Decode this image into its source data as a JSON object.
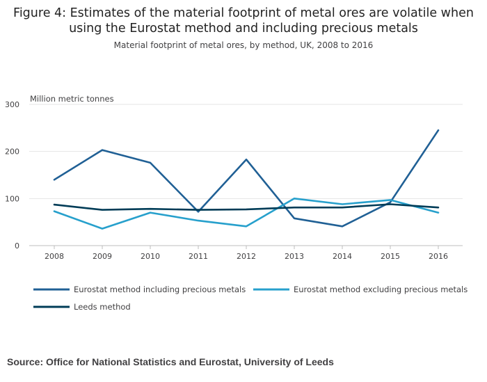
{
  "title_line1": "Figure 4: Estimates of the material footprint of metal ores are volatile when",
  "title_line2": "using the Eurostat method and including precious metals",
  "subtitle": "Material footprint of metal ores, by method, UK, 2008 to 2016",
  "source": "Source: Office for National Statistics and Eurostat, University of Leeds",
  "colors": {
    "including": "#206095",
    "excluding": "#27A0CC",
    "leeds": "#003C57",
    "grid": "#e4e4e4",
    "axis": "#bcbcbc"
  },
  "chart_data": {
    "type": "line",
    "title": "Figure 4: Estimates of the material footprint of metal ores are volatile when using the Eurostat method and including precious metals",
    "subtitle": "Material footprint of metal ores, by method, UK, 2008 to 2016",
    "ylabel": "Million metric tonnes",
    "xlabel": "",
    "categories": [
      "2008",
      "2009",
      "2010",
      "2011",
      "2012",
      "2013",
      "2014",
      "2015",
      "2016"
    ],
    "ylim": [
      0,
      300
    ],
    "yticks": [
      "0",
      "100",
      "200",
      "300"
    ],
    "grid": true,
    "legend_position": "bottom",
    "series": [
      {
        "name": "Eurostat method including precious metals",
        "color": "#206095",
        "values": [
          140,
          203,
          176,
          72,
          183,
          58,
          41,
          92,
          245
        ]
      },
      {
        "name": "Eurostat method excluding precious metals",
        "color": "#27A0CC",
        "values": [
          73,
          36,
          70,
          53,
          41,
          100,
          88,
          97,
          70
        ]
      },
      {
        "name": "Leeds method",
        "color": "#003C57",
        "values": [
          87,
          76,
          78,
          76,
          77,
          81,
          81,
          88,
          81
        ]
      }
    ]
  }
}
